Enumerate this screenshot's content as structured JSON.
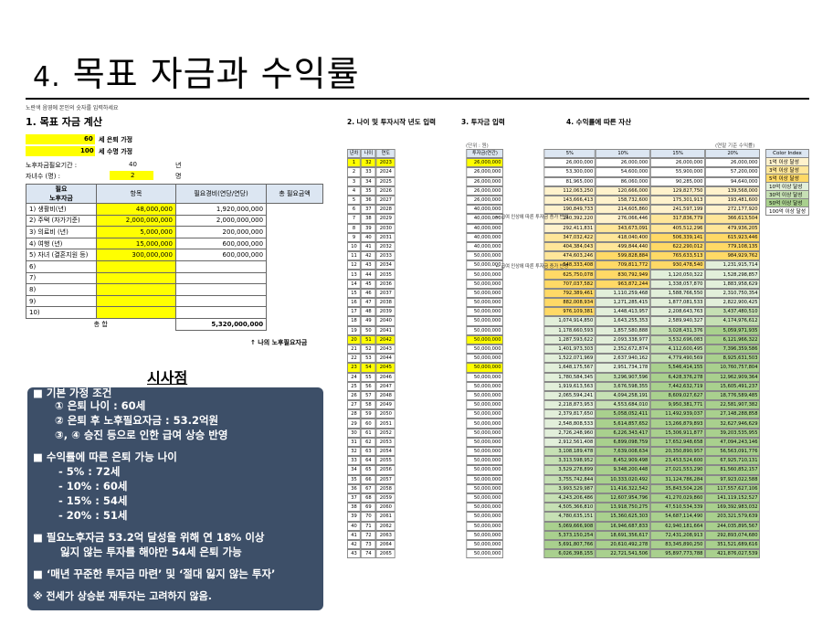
{
  "title": {
    "number": "4.",
    "text": "목표 자금과 수익률"
  },
  "left": {
    "instruction": "노란색 음영에 본인의 숫자를 입력하세요",
    "section": "1. 목표 자금 계산",
    "retire_age": "60",
    "retire_label": "세 은퇴 가정",
    "life_age": "100",
    "life_label": "세 수명 가정",
    "period_label": "노후자금필요기간 :",
    "period_val": "40",
    "period_unit": "년",
    "kids_label": "자녀수 (명) :",
    "kids_val": "2",
    "kids_unit": "명",
    "headers": [
      "항목",
      "필요경비(연당/연당)",
      "총 필요금액"
    ],
    "group_label_1": "필요",
    "group_label_2": "노후자금",
    "rows": [
      {
        "item": "1) 생활비(년)",
        "cost": "48,000,000",
        "total": "1,920,000,000"
      },
      {
        "item": "2) 주택 (자가기준)",
        "cost": "2,000,000,000",
        "total": "2,000,000,000"
      },
      {
        "item": "3) 의료비 (년)",
        "cost": "5,000,000",
        "total": "200,000,000"
      },
      {
        "item": "4) 여행 (년)",
        "cost": "15,000,000",
        "total": "600,000,000"
      },
      {
        "item": "5) 자녀 (결혼지원 등)",
        "cost": "300,000,000",
        "total": "600,000,000"
      },
      {
        "item": "6)",
        "cost": "",
        "total": ""
      },
      {
        "item": "7)",
        "cost": "",
        "total": ""
      },
      {
        "item": "8)",
        "cost": "",
        "total": ""
      },
      {
        "item": "9)",
        "cost": "",
        "total": ""
      },
      {
        "item": "10)",
        "cost": "",
        "total": ""
      }
    ],
    "sum_label": "총 합",
    "sum_val": "5,320,000,000",
    "note": "↑ 나의 노후필요자금"
  },
  "implications": {
    "heading": "시사점",
    "lines": [
      "■ 기본 가정 조건",
      "① 은퇴 나이 : 60세",
      "② 은퇴 후 노후필요자금 : 53.2억원",
      "③, ④ 승진 등으로 인한 급여 상승 반영",
      "■ 수익률에 따른 은퇴 가능 나이",
      "- 5% : 72세",
      "- 10% : 60세",
      "- 15% : 54세",
      "- 20% : 51세",
      "■ 필요노후자금 53.2억 달성을 위해 연 18% 이상",
      "잃지 않는 투자를 해야만 54세 은퇴 가능",
      "■ ‘매년 꾸준한 투자금 마련’ 및 ‘절대 잃지 않는 투자’",
      "※ 전세가 상승분 재투자는 고려하지 않음."
    ]
  },
  "right": {
    "h2": "2. 나이 및 투자시작 년도 입력",
    "h3": "3. 투자금 입력",
    "h4": "4. 수익률에 따른 자산",
    "unit_note": "(단위 : 원)",
    "unit_note2": "(연말 기준 수익률)",
    "col_heads": [
      "년차",
      "나이",
      "연도"
    ],
    "invest_head": "투자금(연간)",
    "rate_heads": [
      "5%",
      "10%",
      "15%",
      "20%"
    ],
    "arrow1": "← 급여 인상에 따른 투자금 증가 반영",
    "arrow2": "← 급여 인상에 따른 투자금 증가 반영",
    "color_index_head": "Color Index",
    "color_index": [
      "1억 이상 달성",
      "3억 이상 달성",
      "5억 이상 달성",
      "10억 이상 달성",
      "30억 이상 달성",
      "50억 이상 달성",
      "100억 이상 달성"
    ],
    "color_index_colors": [
      "#fff2cc",
      "#ffe699",
      "#ffd966",
      "#e2efda",
      "#c6e0b4",
      "#a9d08e",
      "#ffffff"
    ],
    "rows": [
      [
        "1",
        "32",
        "2023",
        "26,000,000",
        "26,000,000",
        "26,000,000",
        "26,000,000",
        "26,000,000"
      ],
      [
        "2",
        "33",
        "2024",
        "26,000,000",
        "53,300,000",
        "54,600,000",
        "55,900,000",
        "57,200,000"
      ],
      [
        "3",
        "34",
        "2025",
        "26,000,000",
        "81,965,000",
        "86,060,000",
        "90,285,000",
        "94,640,000"
      ],
      [
        "4",
        "35",
        "2026",
        "26,000,000",
        "112,063,250",
        "120,666,000",
        "129,827,750",
        "139,568,000"
      ],
      [
        "5",
        "36",
        "2027",
        "26,000,000",
        "143,666,413",
        "158,732,600",
        "175,301,913",
        "193,481,600"
      ],
      [
        "6",
        "37",
        "2028",
        "40,000,000",
        "190,849,733",
        "214,605,860",
        "241,597,199",
        "272,177,920"
      ],
      [
        "7",
        "38",
        "2029",
        "40,000,000",
        "240,392,220",
        "276,066,446",
        "317,836,779",
        "366,613,504"
      ],
      [
        "8",
        "39",
        "2030",
        "40,000,000",
        "292,411,831",
        "343,673,091",
        "405,512,296",
        "479,936,205"
      ],
      [
        "9",
        "40",
        "2031",
        "40,000,000",
        "347,032,422",
        "418,040,400",
        "506,339,141",
        "615,923,446"
      ],
      [
        "10",
        "41",
        "2032",
        "40,000,000",
        "404,384,043",
        "499,844,440",
        "622,290,012",
        "779,108,135"
      ],
      [
        "11",
        "42",
        "2033",
        "50,000,000",
        "474,603,246",
        "599,828,884",
        "765,633,513",
        "984,929,762"
      ],
      [
        "12",
        "43",
        "2034",
        "50,000,000",
        "548,333,408",
        "709,811,772",
        "930,478,540",
        "1,231,915,714"
      ],
      [
        "13",
        "44",
        "2035",
        "50,000,000",
        "625,750,078",
        "830,792,949",
        "1,120,050,322",
        "1,528,298,857"
      ],
      [
        "14",
        "45",
        "2036",
        "50,000,000",
        "707,037,582",
        "963,872,244",
        "1,338,057,870",
        "1,883,958,629"
      ],
      [
        "15",
        "46",
        "2037",
        "50,000,000",
        "792,389,461",
        "1,110,259,468",
        "1,588,766,550",
        "2,310,750,354"
      ],
      [
        "16",
        "47",
        "2038",
        "50,000,000",
        "882,008,934",
        "1,271,285,415",
        "1,877,081,533",
        "2,822,900,425"
      ],
      [
        "17",
        "48",
        "2039",
        "50,000,000",
        "976,109,381",
        "1,448,413,957",
        "2,208,643,763",
        "3,437,480,510"
      ],
      [
        "18",
        "49",
        "2040",
        "50,000,000",
        "1,074,914,850",
        "1,643,255,353",
        "2,589,940,327",
        "4,174,976,612"
      ],
      [
        "19",
        "50",
        "2041",
        "50,000,000",
        "1,178,660,593",
        "1,857,580,888",
        "3,028,431,376",
        "5,059,971,935"
      ],
      [
        "20",
        "51",
        "2042",
        "50,000,000",
        "1,287,593,622",
        "2,093,338,977",
        "3,532,696,083",
        "6,121,966,322"
      ],
      [
        "21",
        "52",
        "2043",
        "50,000,000",
        "1,401,973,303",
        "2,352,672,874",
        "4,112,600,495",
        "7,396,359,586"
      ],
      [
        "22",
        "53",
        "2044",
        "50,000,000",
        "1,522,071,969",
        "2,637,940,162",
        "4,779,490,569",
        "8,925,631,503"
      ],
      [
        "23",
        "54",
        "2045",
        "50,000,000",
        "1,648,175,567",
        "2,951,734,178",
        "5,546,414,155",
        "10,760,757,804"
      ],
      [
        "24",
        "55",
        "2046",
        "50,000,000",
        "1,780,584,345",
        "3,296,907,596",
        "6,428,376,278",
        "12,962,909,364"
      ],
      [
        "25",
        "56",
        "2047",
        "50,000,000",
        "1,919,613,563",
        "3,676,598,355",
        "7,442,632,719",
        "15,605,491,237"
      ],
      [
        "26",
        "57",
        "2048",
        "50,000,000",
        "2,065,594,241",
        "4,094,258,191",
        "8,609,027,627",
        "18,776,589,485"
      ],
      [
        "27",
        "58",
        "2049",
        "50,000,000",
        "2,218,873,953",
        "4,553,684,010",
        "9,950,381,771",
        "22,581,907,382"
      ],
      [
        "28",
        "59",
        "2050",
        "50,000,000",
        "2,379,817,650",
        "5,058,052,411",
        "11,492,939,037",
        "27,148,288,858"
      ],
      [
        "29",
        "60",
        "2051",
        "50,000,000",
        "2,548,808,533",
        "5,614,857,652",
        "13,266,879,893",
        "32,627,946,629"
      ],
      [
        "30",
        "61",
        "2052",
        "50,000,000",
        "2,726,248,960",
        "6,226,343,417",
        "15,306,911,877",
        "39,203,535,955"
      ],
      [
        "31",
        "62",
        "2053",
        "50,000,000",
        "2,912,561,408",
        "6,899,098,759",
        "17,652,948,658",
        "47,094,243,146"
      ],
      [
        "32",
        "63",
        "2054",
        "50,000,000",
        "3,108,189,478",
        "7,639,008,634",
        "20,350,890,957",
        "56,563,091,776"
      ],
      [
        "33",
        "64",
        "2055",
        "50,000,000",
        "3,313,598,952",
        "8,452,909,498",
        "23,453,524,600",
        "67,925,710,131"
      ],
      [
        "34",
        "65",
        "2056",
        "50,000,000",
        "3,529,278,899",
        "9,348,200,448",
        "27,021,553,290",
        "81,560,852,157"
      ],
      [
        "35",
        "66",
        "2057",
        "50,000,000",
        "3,755,742,844",
        "10,333,020,492",
        "31,124,786,284",
        "97,923,022,588"
      ],
      [
        "36",
        "67",
        "2058",
        "50,000,000",
        "3,993,529,987",
        "11,416,322,542",
        "35,843,504,226",
        "117,557,627,106"
      ],
      [
        "37",
        "68",
        "2059",
        "50,000,000",
        "4,243,206,486",
        "12,607,954,796",
        "41,270,029,860",
        "141,119,152,527"
      ],
      [
        "38",
        "69",
        "2060",
        "50,000,000",
        "4,505,366,810",
        "13,918,750,275",
        "47,510,534,339",
        "169,392,983,032"
      ],
      [
        "39",
        "70",
        "2061",
        "50,000,000",
        "4,780,635,151",
        "15,360,625,303",
        "54,687,114,490",
        "203,321,579,639"
      ],
      [
        "40",
        "71",
        "2062",
        "50,000,000",
        "5,069,666,908",
        "16,946,687,833",
        "62,940,181,664",
        "244,035,895,567"
      ],
      [
        "41",
        "72",
        "2063",
        "50,000,000",
        "5,373,150,254",
        "18,691,356,617",
        "72,431,208,913",
        "292,893,074,680"
      ],
      [
        "42",
        "73",
        "2064",
        "50,000,000",
        "5,691,807,766",
        "20,610,492,278",
        "83,345,890,250",
        "351,521,689,616"
      ],
      [
        "43",
        "74",
        "2065",
        "50,000,000",
        "6,026,398,155",
        "22,721,541,506",
        "95,897,773,788",
        "421,876,027,539"
      ]
    ]
  }
}
